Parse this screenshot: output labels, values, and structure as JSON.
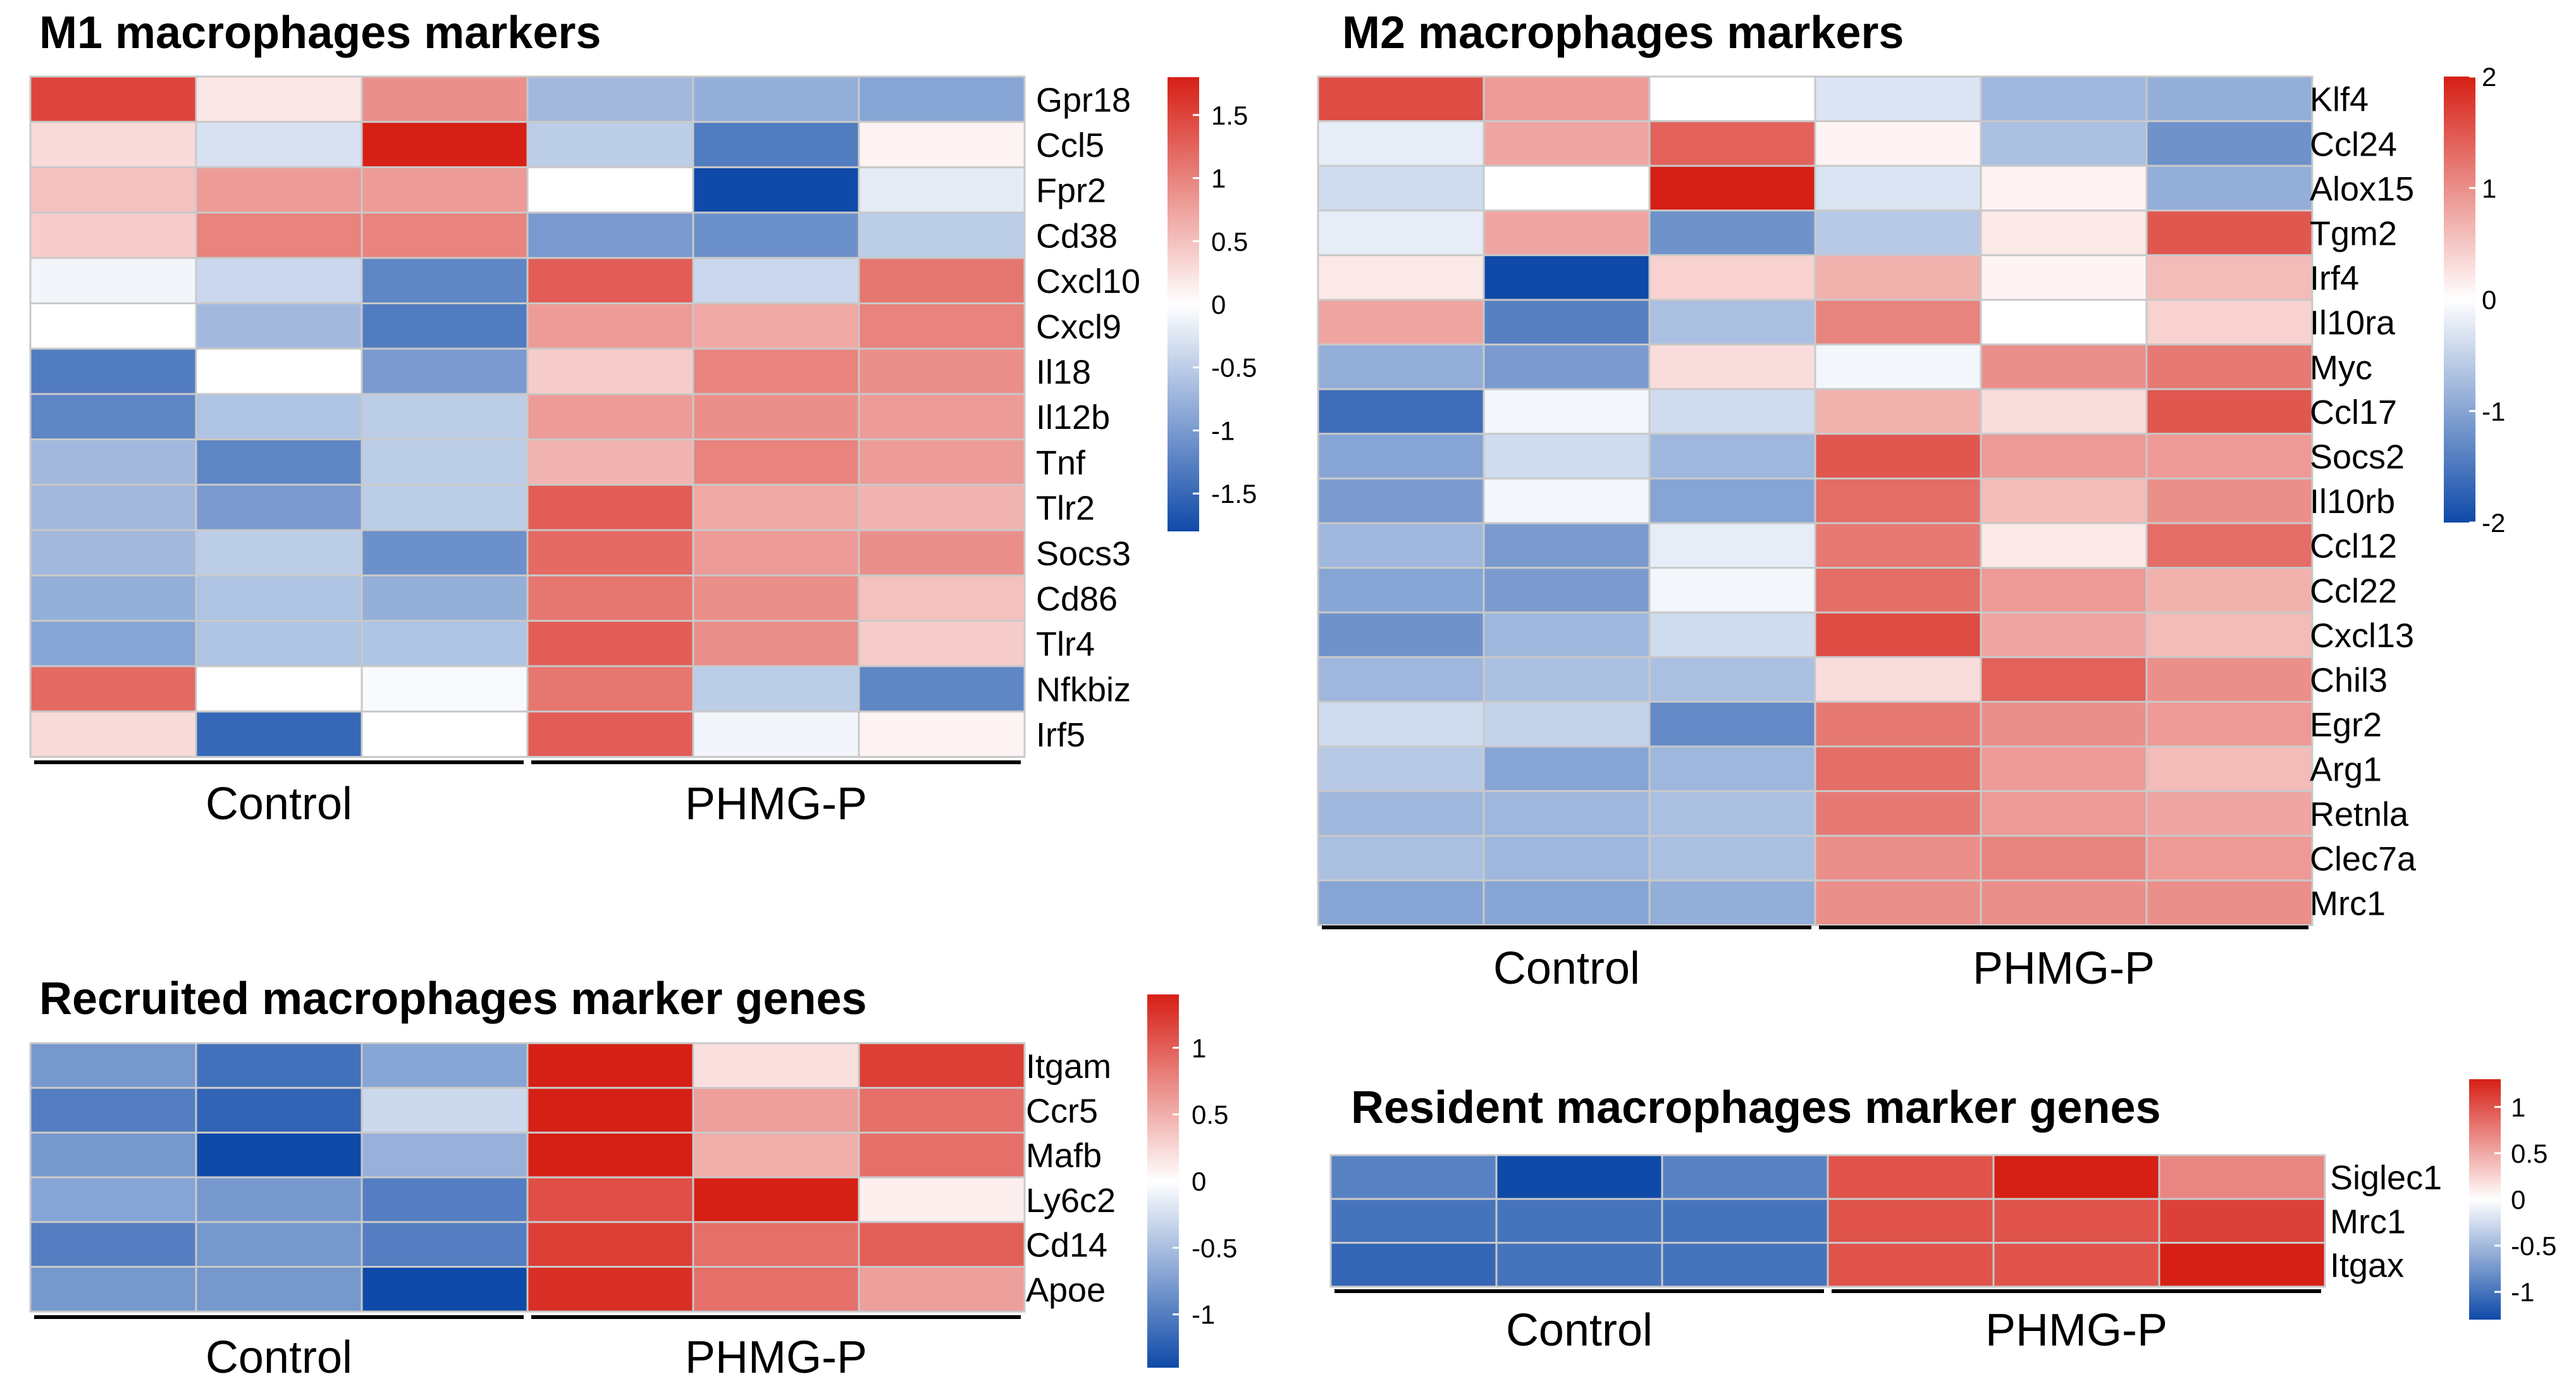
{
  "chart_data": [
    {
      "type": "heatmap",
      "title": "M1 macrophages markers",
      "genes": [
        "Gpr18",
        "Ccl5",
        "Fpr2",
        "Cd38",
        "Cxcl10",
        "Cxcl9",
        "Il18",
        "Il12b",
        "Tnf",
        "Tlr2",
        "Socs3",
        "Cd86",
        "Tlr4",
        "Nfkbiz",
        "Irf5"
      ],
      "groups": [
        {
          "label": "Control",
          "columns": 3
        },
        {
          "label": "PHMG-P",
          "columns": 3
        }
      ],
      "values": [
        [
          1.5,
          0.2,
          0.9,
          -0.7,
          -0.8,
          -0.9
        ],
        [
          0.3,
          -0.3,
          1.8,
          -0.5,
          -1.3,
          0.1
        ],
        [
          0.5,
          0.8,
          0.8,
          0.0,
          -1.8,
          -0.2
        ],
        [
          0.4,
          1.0,
          1.0,
          -1.0,
          -1.1,
          -0.5
        ],
        [
          -0.1,
          -0.4,
          -1.2,
          1.3,
          -0.4,
          1.1
        ],
        [
          0.0,
          -0.7,
          -1.3,
          0.8,
          0.7,
          1.0
        ],
        [
          -1.3,
          0.0,
          -1.0,
          0.4,
          1.0,
          0.9
        ],
        [
          -1.2,
          -0.6,
          -0.5,
          0.8,
          0.9,
          0.8
        ],
        [
          -0.7,
          -1.2,
          -0.5,
          0.6,
          1.0,
          0.8
        ],
        [
          -0.7,
          -1.0,
          -0.5,
          1.3,
          0.7,
          0.6
        ],
        [
          -0.7,
          -0.5,
          -1.1,
          1.2,
          0.8,
          0.9
        ],
        [
          -0.8,
          -0.6,
          -0.8,
          1.1,
          0.9,
          0.5
        ],
        [
          -0.9,
          -0.6,
          -0.6,
          1.3,
          0.9,
          0.4
        ],
        [
          1.2,
          0.0,
          -0.05,
          1.1,
          -0.5,
          -1.2
        ],
        [
          0.3,
          -1.5,
          0.0,
          1.3,
          -0.1,
          0.1
        ]
      ],
      "colorbar": {
        "min": -1.8,
        "max": 1.8,
        "ticks": [
          1.5,
          1,
          0.5,
          0,
          -0.5,
          -1,
          -1.5
        ]
      }
    },
    {
      "type": "heatmap",
      "title": "M2 macrophages markers",
      "genes": [
        "Klf4",
        "Ccl24",
        "Alox15",
        "Tgm2",
        "Irf4",
        "Il10ra",
        "Myc",
        "Ccl17",
        "Socs2",
        "Il10rb",
        "Ccl12",
        "Ccl22",
        "Cxcl13",
        "Chil3",
        "Egr2",
        "Arg1",
        "Retnla",
        "Clec7a",
        "Mrc1"
      ],
      "groups": [
        {
          "label": "Control",
          "columns": 3
        },
        {
          "label": "PHMG-P",
          "columns": 3
        }
      ],
      "values": [
        [
          1.6,
          0.9,
          0.0,
          -0.3,
          -0.8,
          -0.9
        ],
        [
          -0.2,
          0.8,
          1.4,
          0.1,
          -0.7,
          -1.2
        ],
        [
          -0.4,
          0.0,
          2.0,
          -0.3,
          0.1,
          -0.9
        ],
        [
          -0.2,
          0.8,
          -1.2,
          -0.6,
          0.2,
          1.5
        ],
        [
          0.2,
          -2.0,
          0.4,
          0.7,
          0.1,
          0.6
        ],
        [
          0.8,
          -1.4,
          -0.7,
          1.1,
          0.0,
          0.4
        ],
        [
          -0.9,
          -1.1,
          0.3,
          -0.1,
          1.0,
          1.2
        ],
        [
          -1.6,
          -0.1,
          -0.4,
          0.7,
          0.3,
          1.5
        ],
        [
          -1.0,
          -0.4,
          -0.8,
          1.5,
          0.9,
          0.9
        ],
        [
          -1.1,
          -0.1,
          -1.0,
          1.3,
          0.6,
          1.0
        ],
        [
          -0.8,
          -1.1,
          -0.2,
          1.2,
          0.2,
          1.3
        ],
        [
          -1.0,
          -1.1,
          -0.1,
          1.3,
          0.9,
          0.7
        ],
        [
          -1.2,
          -0.8,
          -0.4,
          1.6,
          0.8,
          0.6
        ],
        [
          -0.8,
          -0.7,
          -0.7,
          0.3,
          1.4,
          1.0
        ],
        [
          -0.4,
          -0.5,
          -1.3,
          1.2,
          1.0,
          0.9
        ],
        [
          -0.6,
          -1.0,
          -0.8,
          1.3,
          0.9,
          0.6
        ],
        [
          -0.8,
          -0.8,
          -0.7,
          1.2,
          0.9,
          0.8
        ],
        [
          -0.7,
          -0.8,
          -0.7,
          1.0,
          1.1,
          0.9
        ],
        [
          -1.0,
          -1.0,
          -0.9,
          1.0,
          1.0,
          1.0
        ]
      ],
      "colorbar": {
        "min": -2,
        "max": 2,
        "ticks": [
          2,
          1,
          0,
          -1,
          -2
        ]
      }
    },
    {
      "type": "heatmap",
      "title": "Recruited macrophages marker genes",
      "genes": [
        "Itgam",
        "Ccr5",
        "Mafb",
        "Ly6c2",
        "Cd14",
        "Apoe"
      ],
      "groups": [
        {
          "label": "Control",
          "columns": 3
        },
        {
          "label": "PHMG-P",
          "columns": 3
        }
      ],
      "values": [
        [
          -0.8,
          -1.1,
          -0.7,
          1.4,
          0.2,
          1.2
        ],
        [
          -1.0,
          -1.2,
          -0.3,
          1.4,
          0.6,
          0.9
        ],
        [
          -0.8,
          -1.4,
          -0.6,
          1.5,
          0.5,
          0.9
        ],
        [
          -0.7,
          -0.8,
          -1.0,
          1.1,
          1.5,
          0.1
        ],
        [
          -1.0,
          -0.8,
          -1.0,
          1.2,
          0.9,
          1.0
        ],
        [
          -0.8,
          -0.8,
          -1.4,
          1.3,
          0.9,
          0.6
        ]
      ],
      "colorbar": {
        "min": -1.4,
        "max": 1.4,
        "ticks": [
          1,
          0.5,
          0,
          -0.5,
          -1
        ]
      }
    },
    {
      "type": "heatmap",
      "title": "Resident macrophages marker genes",
      "genes": [
        "Siglec1",
        "Mrc1",
        "Itgax"
      ],
      "groups": [
        {
          "label": "Control",
          "columns": 3
        },
        {
          "label": "PHMG-P",
          "columns": 3
        }
      ],
      "values": [
        [
          -0.9,
          -1.3,
          -0.9,
          1.0,
          1.3,
          0.7
        ],
        [
          -1.0,
          -1.0,
          -1.0,
          1.0,
          1.0,
          1.1
        ],
        [
          -1.1,
          -1.0,
          -1.0,
          1.0,
          1.0,
          1.3
        ]
      ],
      "colorbar": {
        "min": -1.3,
        "max": 1.3,
        "ticks": [
          1,
          0.5,
          0,
          -0.5,
          -1
        ]
      }
    }
  ]
}
